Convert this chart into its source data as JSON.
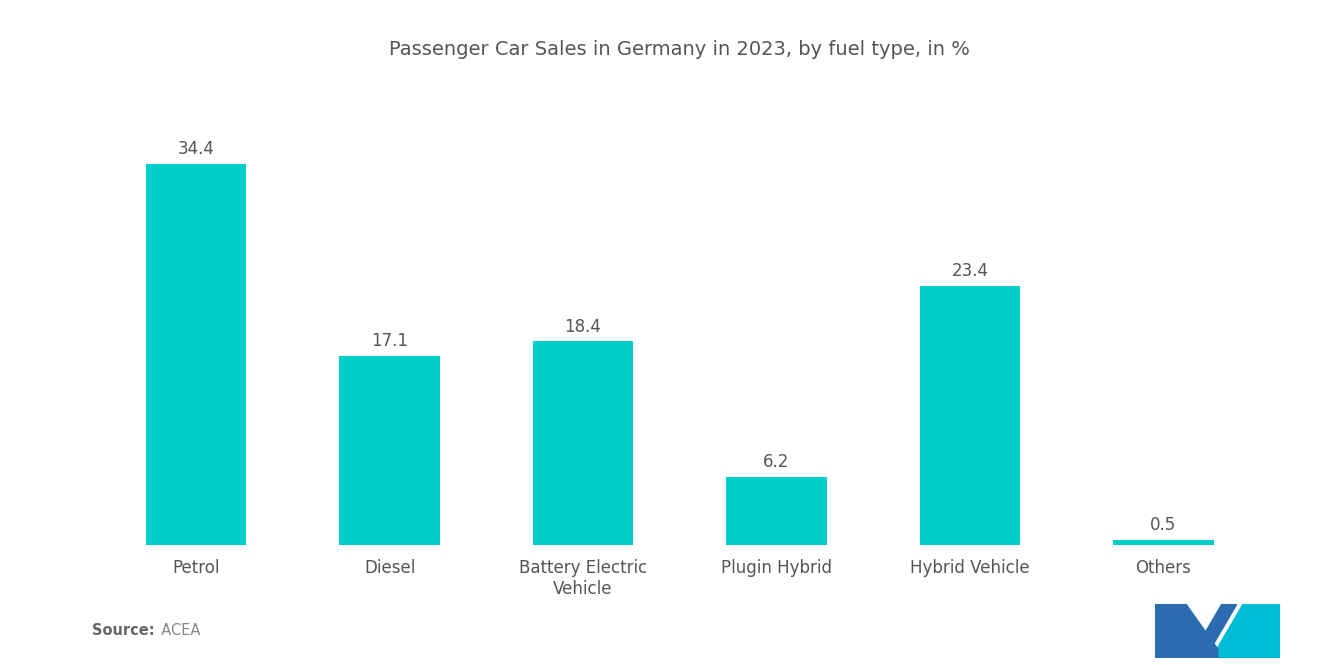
{
  "title": "Passenger Car Sales in Germany in 2023, by fuel type, in %",
  "categories": [
    "Petrol",
    "Diesel",
    "Battery Electric\nVehicle",
    "Plugin Hybrid",
    "Hybrid Vehicle",
    "Others"
  ],
  "values": [
    34.4,
    17.1,
    18.4,
    6.2,
    23.4,
    0.5
  ],
  "bar_color": "#00CEC9",
  "background_color": "#ffffff",
  "title_fontsize": 14,
  "label_fontsize": 12,
  "value_fontsize": 12,
  "source_label": "Source:",
  "source_value": "  ACEA",
  "ylim": [
    0,
    42
  ],
  "bar_width": 0.52,
  "logo_left_color": "#2B6CB0",
  "logo_right_color": "#00BCD4"
}
